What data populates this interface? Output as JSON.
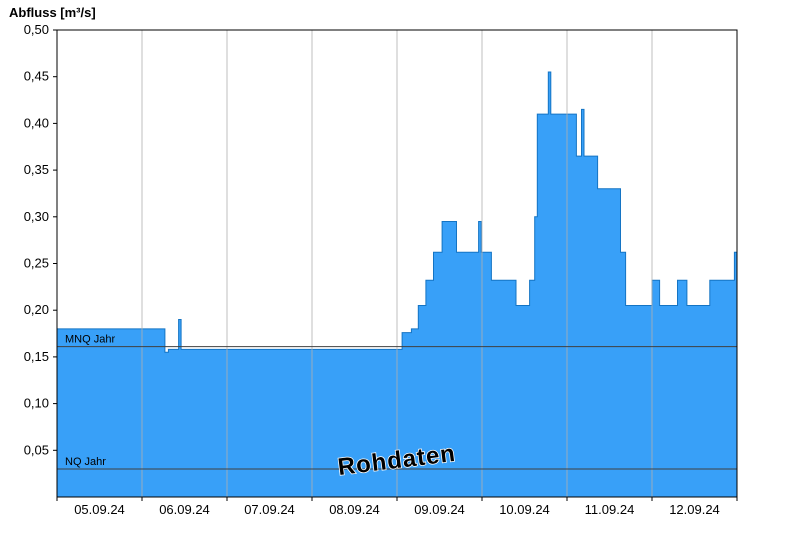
{
  "title": "Abfluss [m³/s]",
  "watermark": "Rohdaten",
  "colors": {
    "area_fill": "#38a0f8",
    "area_stroke": "#1474c4",
    "grid": "#b0b0b0",
    "axis": "#000000",
    "ref_line": "#404040",
    "watermark": "#a0a0a0"
  },
  "chart_data": {
    "type": "area",
    "title": "Abfluss [m³/s]",
    "xlabel": "",
    "ylabel": "Abfluss [m³/s]",
    "x_unit": "days",
    "x_range": [
      0,
      8
    ],
    "ylim": [
      0,
      0.5
    ],
    "grid": "vertical-day-lines",
    "x_tick_labels": [
      "05.09.24",
      "06.09.24",
      "07.09.24",
      "08.09.24",
      "09.09.24",
      "10.09.24",
      "11.09.24",
      "12.09.24"
    ],
    "y_tick_values": [
      0.05,
      0.1,
      0.15,
      0.2,
      0.25,
      0.3,
      0.35,
      0.4,
      0.45,
      0.5
    ],
    "y_tick_labels": [
      "0,05",
      "0,10",
      "0,15",
      "0,20",
      "0,25",
      "0,30",
      "0,35",
      "0,40",
      "0,45",
      "0,50"
    ],
    "series": [
      {
        "name": "Rohdaten",
        "step_points": [
          [
            0.0,
            0.18
          ],
          [
            1.27,
            0.155
          ],
          [
            1.31,
            0.158
          ],
          [
            1.43,
            0.19
          ],
          [
            1.46,
            0.158
          ],
          [
            4.06,
            0.176
          ],
          [
            4.17,
            0.18
          ],
          [
            4.25,
            0.205
          ],
          [
            4.34,
            0.232
          ],
          [
            4.43,
            0.262
          ],
          [
            4.53,
            0.295
          ],
          [
            4.7,
            0.262
          ],
          [
            4.96,
            0.295
          ],
          [
            4.99,
            0.262
          ],
          [
            5.11,
            0.232
          ],
          [
            5.4,
            0.205
          ],
          [
            5.56,
            0.232
          ],
          [
            5.62,
            0.3
          ],
          [
            5.65,
            0.41
          ],
          [
            5.78,
            0.455
          ],
          [
            5.81,
            0.41
          ],
          [
            6.11,
            0.365
          ],
          [
            6.17,
            0.415
          ],
          [
            6.2,
            0.365
          ],
          [
            6.36,
            0.33
          ],
          [
            6.63,
            0.262
          ],
          [
            6.69,
            0.205
          ],
          [
            7.0,
            0.232
          ],
          [
            7.09,
            0.205
          ],
          [
            7.3,
            0.232
          ],
          [
            7.41,
            0.205
          ],
          [
            7.68,
            0.232
          ],
          [
            7.97,
            0.262
          ]
        ]
      }
    ],
    "reference_lines": [
      {
        "label": "MNQ Jahr",
        "value": 0.161
      },
      {
        "label": "NQ Jahr",
        "value": 0.03
      }
    ]
  }
}
